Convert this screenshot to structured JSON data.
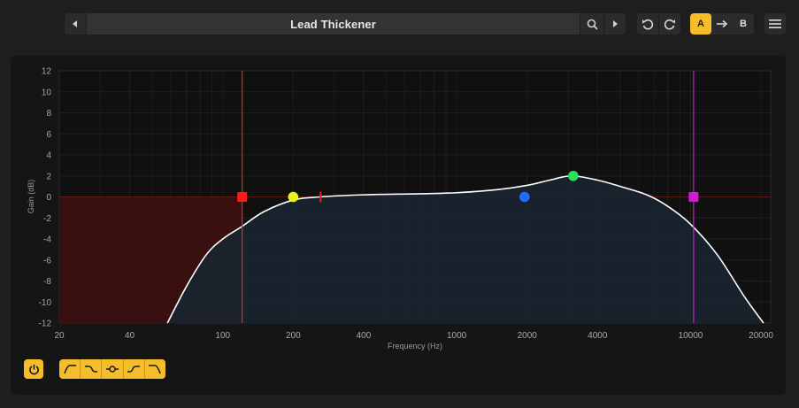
{
  "toolbar": {
    "preset_name": "Lead Thickener",
    "ab": {
      "a_label": "A",
      "b_label": "B",
      "copy_icon": "arrow-right-icon",
      "active": "A"
    }
  },
  "colors": {
    "accent": "#f5bd2a",
    "curve": "#ffffff",
    "band_low_cut": "#ff1a1a",
    "band_low_shelf": "#e6f21a",
    "band_mid": "#1a6bff",
    "band_peak": "#26e05e",
    "band_high_cut": "#d21ad6"
  },
  "chart_data": {
    "type": "line",
    "xlabel": "Frequency (Hz)",
    "ylabel": "Gain (dB)",
    "x_scale": "log",
    "xlim": [
      20,
      22000
    ],
    "ylim": [
      -12,
      12
    ],
    "x_ticks": [
      20,
      40,
      100,
      200,
      400,
      1000,
      2000,
      4000,
      10000,
      20000
    ],
    "x_tick_labels": [
      "20",
      "40",
      "100",
      "200",
      "400",
      "1000",
      "2000",
      "4000",
      "10000",
      "20000"
    ],
    "y_ticks": [
      12,
      10,
      8,
      6,
      4,
      2,
      0,
      -2,
      -4,
      -6,
      -8,
      -10,
      -12
    ],
    "y_tick_labels": [
      "12",
      "10",
      "8",
      "6",
      "4",
      "2",
      "0",
      "-2",
      "-4",
      "-6",
      "-8",
      "-10",
      "-12"
    ],
    "grid": true,
    "curve": [
      [
        58,
        -12
      ],
      [
        70,
        -8.5
      ],
      [
        85,
        -5.5
      ],
      [
        100,
        -4
      ],
      [
        121,
        -2.8
      ],
      [
        150,
        -1.4
      ],
      [
        200,
        -0.3
      ],
      [
        260,
        0
      ],
      [
        400,
        0.2
      ],
      [
        700,
        0.3
      ],
      [
        1000,
        0.4
      ],
      [
        1500,
        0.7
      ],
      [
        2000,
        1.1
      ],
      [
        2500,
        1.6
      ],
      [
        3100,
        2.0
      ],
      [
        4000,
        1.6
      ],
      [
        5000,
        1.0
      ],
      [
        6500,
        0.2
      ],
      [
        8000,
        -0.9
      ],
      [
        10000,
        -2.6
      ],
      [
        13000,
        -5.5
      ],
      [
        17000,
        -9.5
      ],
      [
        20500,
        -12
      ]
    ],
    "bands": [
      {
        "type": "low-cut",
        "freq": 121,
        "gain": 0,
        "marker": "square",
        "color": "#ff1a1a"
      },
      {
        "type": "low-shelf",
        "freq": 200,
        "gain": 0,
        "marker": "circle",
        "color": "#e6f21a"
      },
      {
        "type": "bell",
        "freq": 1950,
        "gain": 0,
        "marker": "circle",
        "color": "#1a6bff"
      },
      {
        "type": "bell",
        "freq": 3150,
        "gain": 2,
        "marker": "circle",
        "color": "#26e05e"
      },
      {
        "type": "high-cut",
        "freq": 10300,
        "gain": 0,
        "marker": "square",
        "color": "#d21ad6"
      }
    ],
    "low_cut_shade_freq": 121,
    "tick_marker": {
      "freq": 262,
      "gain": 0,
      "color": "#ff1a1a"
    }
  },
  "footer": {
    "power_icon": "power-icon",
    "filter_types": [
      "low-cut-icon",
      "low-shelf-icon",
      "bell-icon",
      "high-shelf-icon",
      "high-cut-icon"
    ]
  }
}
